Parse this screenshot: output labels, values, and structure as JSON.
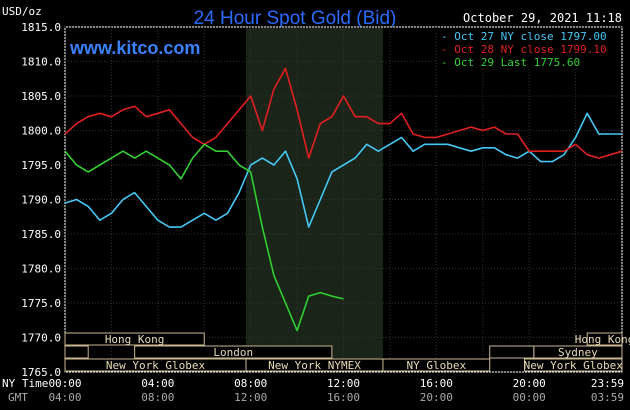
{
  "header": {
    "title": "24 Hour Spot Gold (Bid)",
    "datetime": "October 29, 2021 11:18",
    "site": "www.kitco.com"
  },
  "chart_data": {
    "type": "line",
    "title": "24 Hour Spot Gold (Bid)",
    "ylabel": "USD/oz",
    "ylim": [
      1765.0,
      1815.0
    ],
    "y_ticks": [
      "1815.0",
      "1810.0",
      "1805.0",
      "1800.0",
      "1795.0",
      "1790.0",
      "1785.0",
      "1780.0",
      "1775.0",
      "1770.0",
      "1765.0"
    ],
    "x_labels": {
      "ny_label": "NY Time",
      "gmt_label": "GMT",
      "ny": [
        "00:00",
        "04:00",
        "08:00",
        "12:00",
        "16:00",
        "20:00",
        "23:59"
      ],
      "gmt": [
        "04:00",
        "08:00",
        "12:00",
        "16:00",
        "20:00",
        "00:00",
        "03:59"
      ]
    },
    "grid": true,
    "legend_position": "top-right",
    "legend": [
      {
        "label": "Oct 27 NY close 1797.00",
        "color": "#46c8f5"
      },
      {
        "label": "Oct 28 NY close 1799.10",
        "color": "#e02020"
      },
      {
        "label": "Oct 29 Last 1775.60",
        "color": "#30d030"
      }
    ],
    "series": [
      {
        "name": "Oct 27",
        "color": "#46c8f5",
        "x": [
          0,
          0.5,
          1,
          1.5,
          2,
          2.5,
          3,
          3.5,
          4,
          4.5,
          5,
          5.5,
          6,
          6.5,
          7,
          7.5,
          8,
          8.5,
          9,
          9.5,
          10,
          10.5,
          11,
          11.5,
          12,
          12.5,
          13,
          13.5,
          14,
          14.5,
          15,
          15.5,
          16,
          16.5,
          17,
          17.5,
          18,
          18.5,
          19,
          19.5,
          20,
          20.5,
          21,
          21.5,
          22,
          22.5,
          23,
          23.5,
          24
        ],
        "values": [
          1789.5,
          1790,
          1789,
          1787,
          1788,
          1790,
          1791,
          1789,
          1787,
          1786,
          1786,
          1787,
          1788,
          1787,
          1788,
          1791,
          1795,
          1796,
          1795,
          1797,
          1793,
          1786,
          1790,
          1794,
          1795,
          1796,
          1798,
          1797,
          1798,
          1799,
          1797,
          1798,
          1798,
          1798,
          1797.5,
          1797,
          1797.5,
          1797.5,
          1796.5,
          1796,
          1797,
          1795.5,
          1795.5,
          1796.5,
          1799,
          1802.5,
          1799.5,
          1799.5,
          1799.5
        ]
      },
      {
        "name": "Oct 28",
        "color": "#e02020",
        "x": [
          0,
          0.5,
          1,
          1.5,
          2,
          2.5,
          3,
          3.5,
          4,
          4.5,
          5,
          5.5,
          6,
          6.5,
          7,
          7.5,
          8,
          8.5,
          9,
          9.5,
          10,
          10.5,
          11,
          11.5,
          12,
          12.5,
          13,
          13.5,
          14,
          14.5,
          15,
          15.5,
          16,
          16.5,
          17,
          17.5,
          18,
          18.5,
          19,
          19.5,
          20,
          20.5,
          21,
          21.5,
          22,
          22.5,
          23,
          23.5,
          24
        ],
        "values": [
          1799.5,
          1801,
          1802,
          1802.5,
          1802,
          1803,
          1803.5,
          1802,
          1802.5,
          1803,
          1801,
          1799,
          1798,
          1799,
          1801,
          1803,
          1805,
          1800,
          1806,
          1809,
          1803,
          1796,
          1801,
          1802,
          1805,
          1802,
          1802,
          1801,
          1801,
          1802.5,
          1799.5,
          1799,
          1799,
          1799.5,
          1800,
          1800.5,
          1800,
          1800.5,
          1799.5,
          1799.5,
          1797,
          1797,
          1797,
          1797,
          1798,
          1796.5,
          1796,
          1796.5,
          1797
        ]
      },
      {
        "name": "Oct 29",
        "color": "#30d030",
        "x": [
          0,
          0.5,
          1,
          1.5,
          2,
          2.5,
          3,
          3.5,
          4,
          4.5,
          5,
          5.5,
          6,
          6.5,
          7,
          7.5,
          8,
          8.5,
          9,
          9.5,
          10,
          10.5,
          11,
          11.5,
          12
        ],
        "values": [
          1797,
          1795,
          1794,
          1795,
          1796,
          1797,
          1796,
          1797,
          1796,
          1795,
          1793,
          1796,
          1798,
          1797,
          1797,
          1795,
          1794,
          1786,
          1779,
          1775,
          1771,
          1776,
          1776.5,
          1776,
          1775.6
        ]
      }
    ],
    "sessions": {
      "row1": [
        "Hong Kong",
        "Hong Kong"
      ],
      "row2": [
        "London",
        "Sydney"
      ],
      "row3": [
        "New York Globex",
        "New York NYMEX",
        "NY Globex",
        "New York Globex"
      ]
    }
  }
}
